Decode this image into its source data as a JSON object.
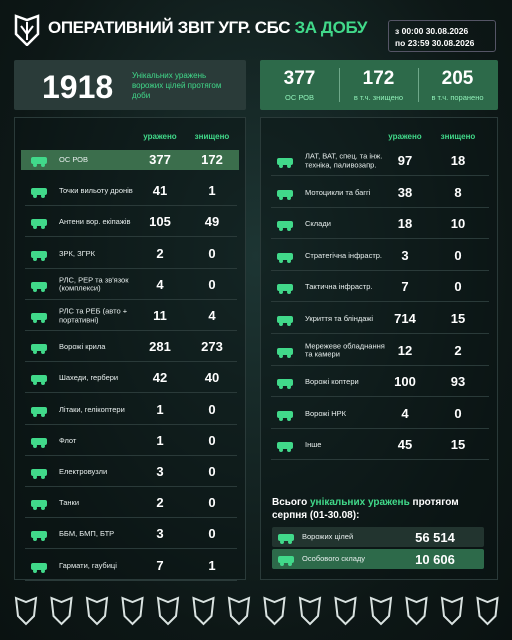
{
  "header": {
    "title": "ОПЕРАТИВНИЙ ЗВІТ УГР. СБС",
    "title_accent": "ЗА ДОБУ",
    "period_from": "з 00:00 30.08.2026",
    "period_to": "по 23:59 30.08.2026"
  },
  "summary_left": {
    "value": "1918",
    "label": "Унікальних уражень ворожих цілей протягом доби"
  },
  "summary_right": [
    {
      "value": "377",
      "label": "ОС РОВ"
    },
    {
      "value": "172",
      "label": "в т.ч. знищено"
    },
    {
      "value": "205",
      "label": "в т.ч. поранено"
    }
  ],
  "left_table": {
    "columns": [
      "уражено",
      "знищено"
    ],
    "rows": [
      [
        "ОС РОВ",
        377,
        172
      ],
      [
        "Точки вильоту дронів",
        41,
        1
      ],
      [
        "Антени вор. екіпажів",
        105,
        49
      ],
      [
        "ЗРК, ЗГРК",
        2,
        0
      ],
      [
        "РЛС, РЕР та зв'язок (комплекси)",
        4,
        0
      ],
      [
        "РЛС та РЕБ (авто + портативні)",
        11,
        4
      ],
      [
        "Ворожі крила",
        281,
        273
      ],
      [
        "Шахеди, гербери",
        42,
        40
      ],
      [
        "Літаки, гелікоптери",
        1,
        0
      ],
      [
        "Флот",
        1,
        0
      ],
      [
        "Електровузли",
        3,
        0
      ],
      [
        "Танки",
        2,
        0
      ],
      [
        "ББМ, БМП, БТР",
        3,
        0
      ],
      [
        "Гармати, гаубиці",
        7,
        1
      ]
    ]
  },
  "right_table": {
    "columns": [
      "уражено",
      "знищено"
    ],
    "rows": [
      [
        "ЛАТ, ВАТ, спец. та інж. техніка, паливозапр.",
        97,
        18
      ],
      [
        "Мотоцикли та баггі",
        38,
        8
      ],
      [
        "Склади",
        18,
        10
      ],
      [
        "Стратегічна інфрастр.",
        3,
        0
      ],
      [
        "Тактична інфрастр.",
        7,
        0
      ],
      [
        "Укриття та бліндажі",
        714,
        15
      ],
      [
        "Мережеве обладнання та камери",
        12,
        2
      ],
      [
        "Ворожі коптери",
        100,
        93
      ],
      [
        "Ворожі НРК",
        4,
        0
      ],
      [
        "Інше",
        45,
        15
      ]
    ]
  },
  "totals": {
    "title_start": "Всього",
    "title_accent": "унікальних уражень",
    "title_end": "протягом серпня (01-30.08):",
    "rows": [
      [
        "Ворожих цілей",
        "56 514"
      ],
      [
        "Особового складу",
        "10 606"
      ]
    ]
  }
}
